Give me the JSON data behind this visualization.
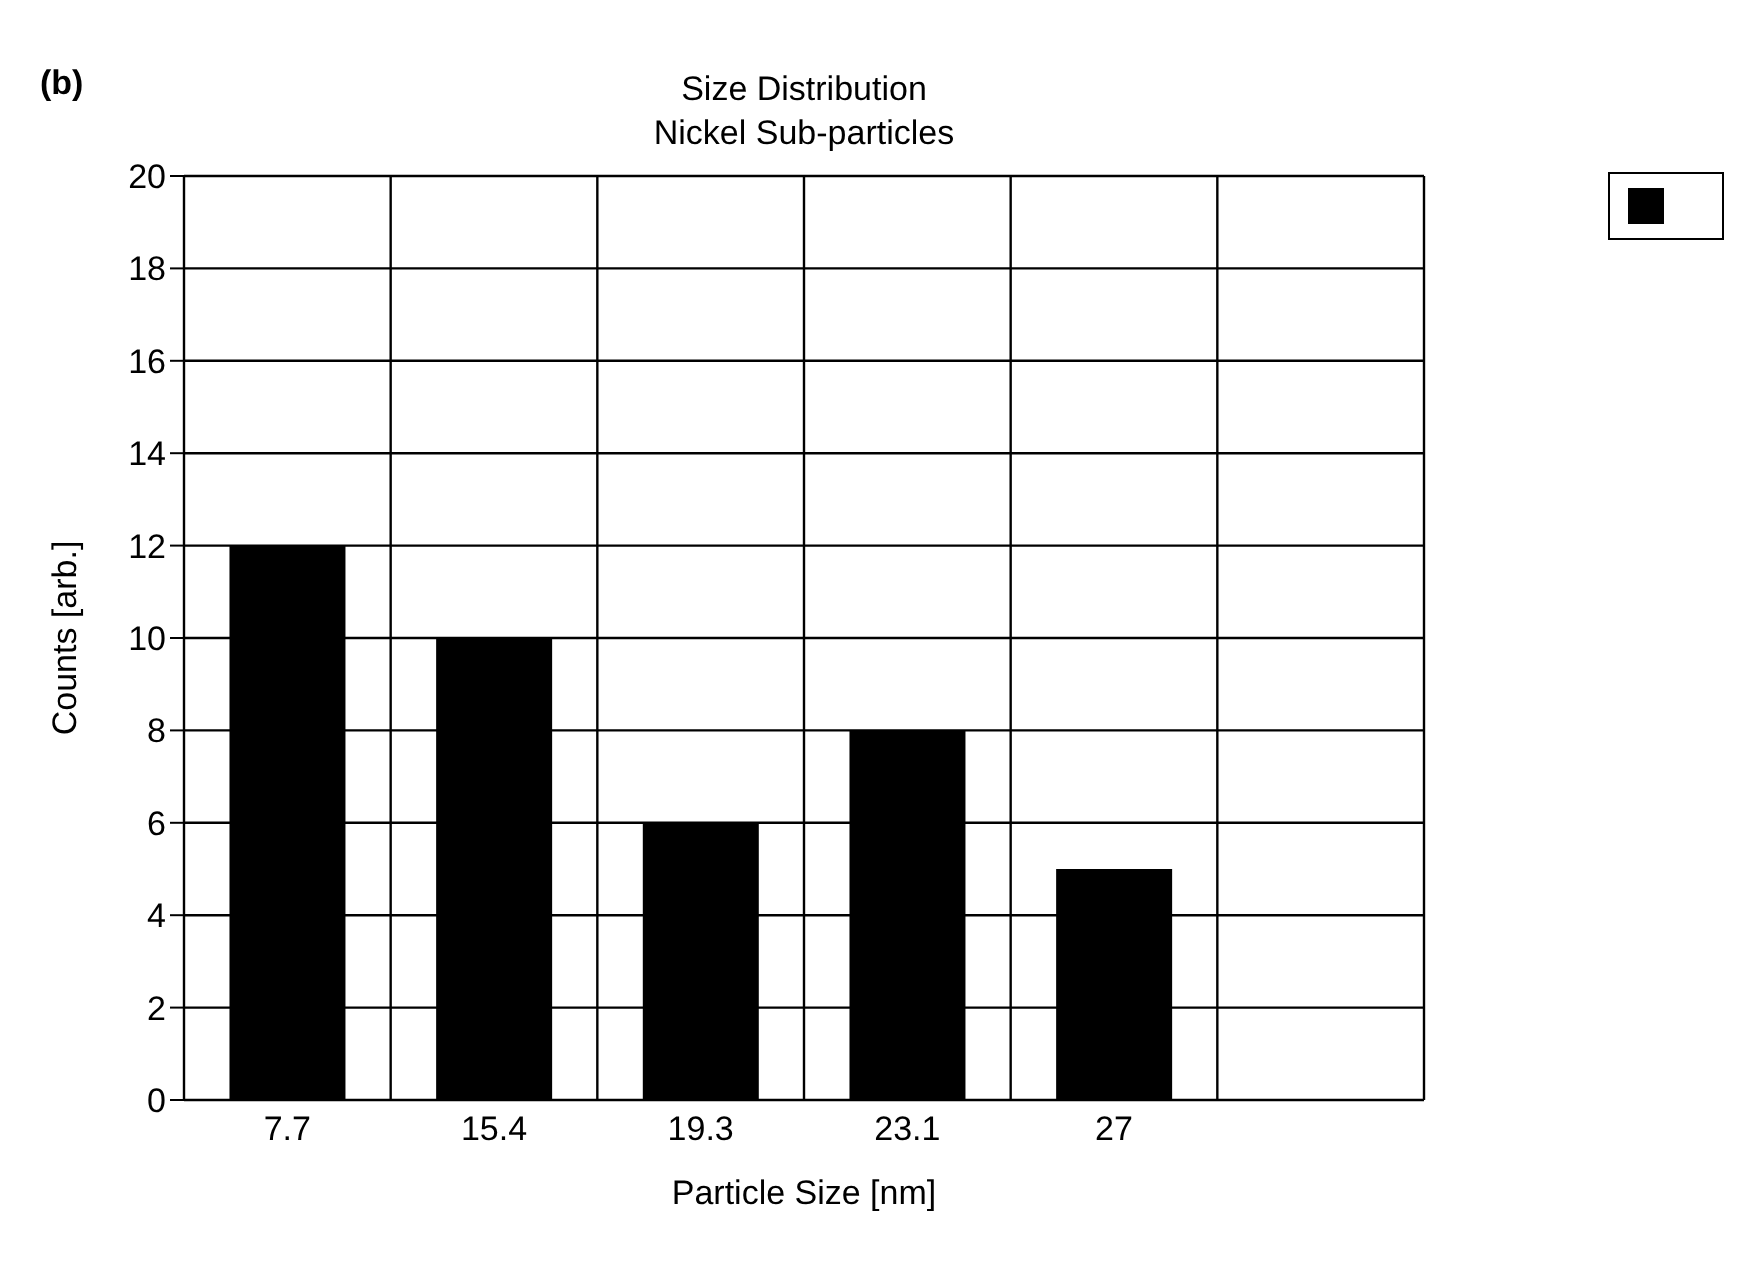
{
  "chart_data": {
    "type": "bar",
    "title": "Size Distribution",
    "subtitle": "Nickel Sub-particles",
    "xlabel": "Particle Size [nm]",
    "ylabel": "Counts [arb.]",
    "annotations": [
      "(b)"
    ],
    "categories": [
      "7.7",
      "15.4",
      "19.3",
      "23.1",
      "27",
      null
    ],
    "series": [
      {
        "color": "#000000",
        "values": [
          12,
          10,
          6,
          8,
          5,
          null
        ]
      }
    ],
    "ylim": [
      0,
      20
    ],
    "yticks": [
      0,
      2,
      4,
      6,
      8,
      10,
      12,
      14,
      16,
      18,
      20
    ],
    "grid": true
  }
}
